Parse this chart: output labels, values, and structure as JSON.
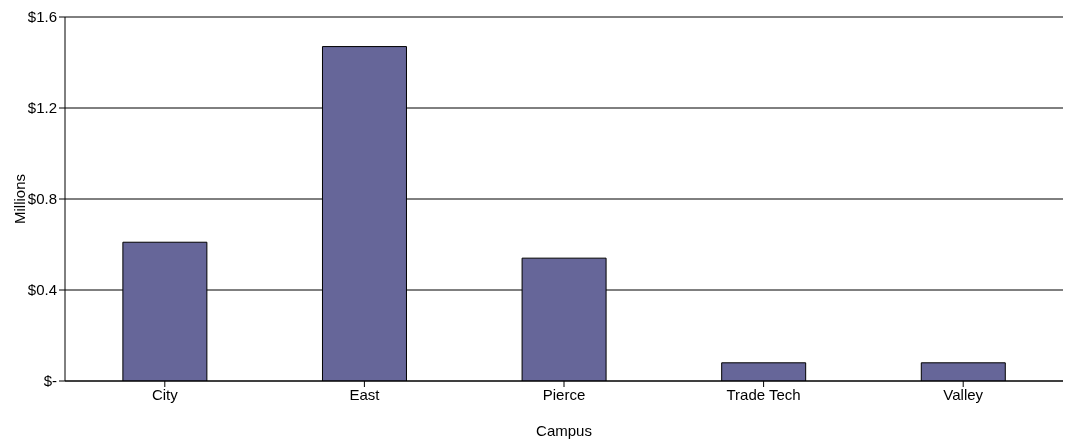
{
  "chart_data": {
    "type": "bar",
    "xlabel": "Campus",
    "ylabel": "Millions",
    "categories": [
      "City",
      "East",
      "Pierce",
      "Trade Tech",
      "Valley"
    ],
    "values": [
      0.61,
      1.47,
      0.54,
      0.08,
      0.08
    ],
    "color": "#666699",
    "ylim": [
      0,
      1.6
    ],
    "yticks": [
      {
        "value": 0,
        "label": "$-"
      },
      {
        "value": 0.4,
        "label": "$0.4"
      },
      {
        "value": 0.8,
        "label": "$0.8"
      },
      {
        "value": 1.2,
        "label": "$1.2"
      },
      {
        "value": 1.6,
        "label": "$1.6"
      }
    ],
    "grid": "y"
  }
}
